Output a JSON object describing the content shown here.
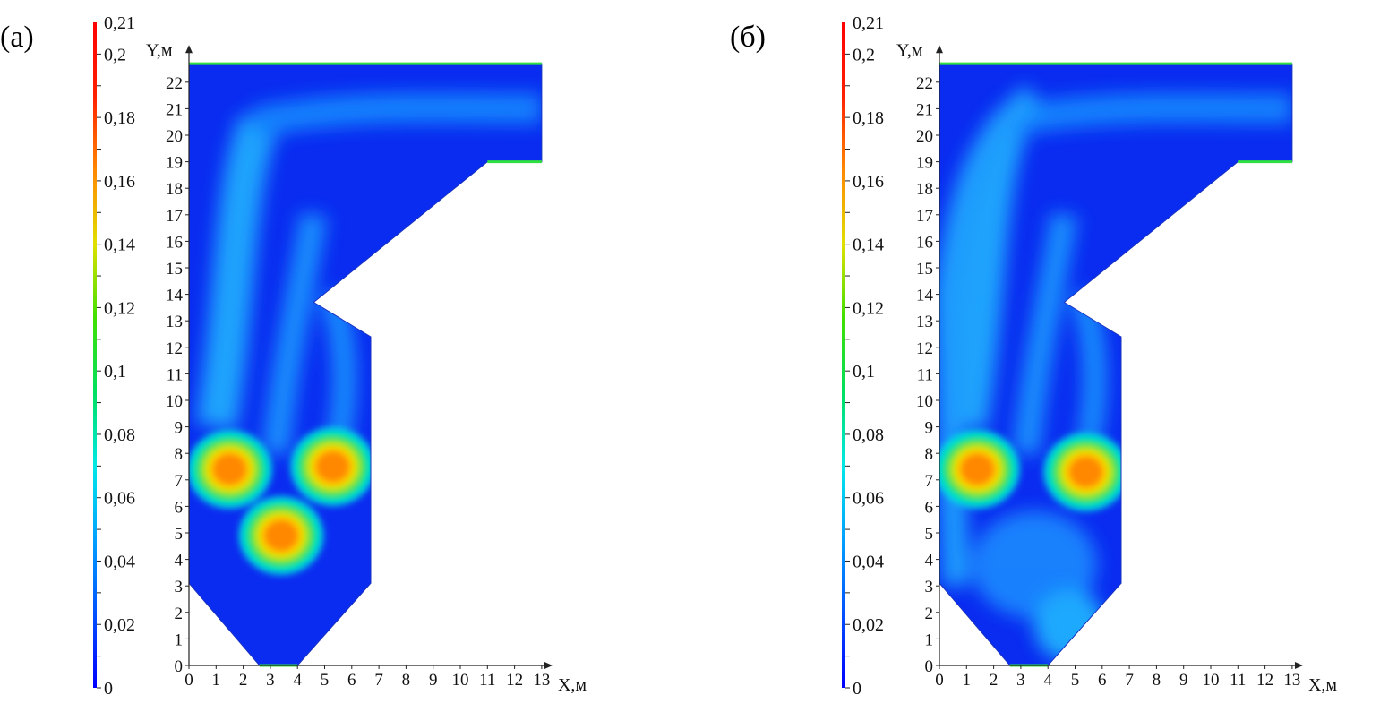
{
  "figure": {
    "panels": [
      {
        "label": "(а)"
      },
      {
        "label": "(б)"
      }
    ]
  },
  "chart_data": [
    {
      "type": "heatmap",
      "panel_label": "(а)",
      "xlabel": "X,м",
      "ylabel": "Y,м",
      "xlim": [
        0,
        13
      ],
      "ylim": [
        0,
        22.7
      ],
      "x_ticks": [
        "0",
        "1",
        "2",
        "3",
        "4",
        "5",
        "6",
        "7",
        "8",
        "9",
        "10",
        "11",
        "12",
        "13"
      ],
      "y_ticks": [
        "0",
        "1",
        "2",
        "3",
        "4",
        "5",
        "6",
        "7",
        "8",
        "9",
        "10",
        "11",
        "12",
        "13",
        "14",
        "15",
        "16",
        "17",
        "18",
        "19",
        "20",
        "21",
        "22"
      ],
      "colorbar": {
        "min": 0,
        "max": 0.21,
        "ticks": [
          "0",
          "0,02",
          "0,04",
          "0,06",
          "0,08",
          "0,1",
          "0,12",
          "0,14",
          "0,16",
          "0,18",
          "0,2",
          "0,21"
        ],
        "colors": [
          "#0000ff",
          "#0050ff",
          "#00a0ff",
          "#00e8e8",
          "#00e060",
          "#40e000",
          "#e0e000",
          "#ff8800",
          "#ff2000",
          "#ff0000"
        ]
      },
      "domain_outline": [
        [
          0,
          3.1
        ],
        [
          2.6,
          0
        ],
        [
          4,
          0
        ],
        [
          6.7,
          3.1
        ],
        [
          6.7,
          12.4
        ],
        [
          4.6,
          13.7
        ],
        [
          11,
          19
        ],
        [
          13,
          19
        ],
        [
          13,
          22.7
        ],
        [
          0,
          22.7
        ]
      ],
      "hot_spots": [
        {
          "x": 1.5,
          "y": 7.4,
          "value": 0.19
        },
        {
          "x": 5.3,
          "y": 7.5,
          "value": 0.18
        },
        {
          "x": 3.4,
          "y": 4.9,
          "value": 0.19
        }
      ]
    },
    {
      "type": "heatmap",
      "panel_label": "(б)",
      "xlabel": "X,м",
      "ylabel": "Y,м",
      "xlim": [
        0,
        13
      ],
      "ylim": [
        0,
        22.7
      ],
      "x_ticks": [
        "0",
        "1",
        "2",
        "3",
        "4",
        "5",
        "6",
        "7",
        "8",
        "9",
        "10",
        "11",
        "12",
        "13"
      ],
      "y_ticks": [
        "0",
        "1",
        "2",
        "3",
        "4",
        "5",
        "6",
        "7",
        "8",
        "9",
        "10",
        "11",
        "12",
        "13",
        "14",
        "15",
        "16",
        "17",
        "18",
        "19",
        "20",
        "21",
        "22"
      ],
      "colorbar": {
        "min": 0,
        "max": 0.21,
        "ticks": [
          "0",
          "0,02",
          "0,04",
          "0,06",
          "0,08",
          "0,1",
          "0,12",
          "0,14",
          "0,16",
          "0,18",
          "0,2",
          "0,21"
        ],
        "colors": [
          "#0000ff",
          "#0050ff",
          "#00a0ff",
          "#00e8e8",
          "#00e060",
          "#40e000",
          "#e0e000",
          "#ff8800",
          "#ff2000",
          "#ff0000"
        ]
      },
      "domain_outline": [
        [
          0,
          3.1
        ],
        [
          2.6,
          0
        ],
        [
          4,
          0
        ],
        [
          6.7,
          3.1
        ],
        [
          6.7,
          12.4
        ],
        [
          4.6,
          13.7
        ],
        [
          11,
          19
        ],
        [
          13,
          19
        ],
        [
          13,
          22.7
        ],
        [
          0,
          22.7
        ]
      ],
      "hot_spots": [
        {
          "x": 1.4,
          "y": 7.4,
          "value": 0.19
        },
        {
          "x": 5.4,
          "y": 7.3,
          "value": 0.16
        }
      ]
    }
  ]
}
